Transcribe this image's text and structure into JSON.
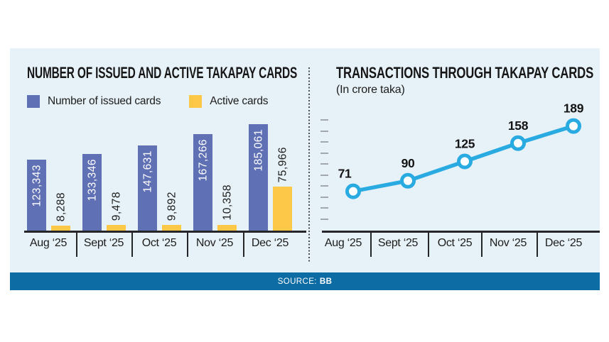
{
  "source": {
    "label": "SOURCE:",
    "value": "BB"
  },
  "colors": {
    "panel_background": "#e7f1f8",
    "issued_bar": "#6070b5",
    "active_bar": "#fdc748",
    "line": "#29abe2",
    "marker_fill": "#ffffff",
    "axis": "#26262a",
    "source_band": "#0c6ca3",
    "ytick": "#a2a8ae"
  },
  "chart_data": [
    {
      "type": "bar",
      "title": "NUMBER OF ISSUED AND ACTIVE TAKAPAY CARDS",
      "categories": [
        "Aug ‘25",
        "Sept ‘25",
        "Oct ‘25",
        "Nov ‘25",
        "Dec ‘25"
      ],
      "series": [
        {
          "name": "Number of issued cards",
          "color": "#6070b5",
          "values": [
            123343,
            133346,
            147631,
            167266,
            185061
          ],
          "labels": [
            "123,343",
            "133,346",
            "147,631",
            "167,266",
            "185,061"
          ]
        },
        {
          "name": "Active cards",
          "color": "#fdc748",
          "values": [
            8288,
            9478,
            9892,
            10358,
            75966
          ],
          "labels": [
            "8,288",
            "9,478",
            "9,892",
            "10,358",
            "75,966"
          ]
        }
      ],
      "ylim": [
        0,
        190000
      ],
      "grid": false,
      "legend_position": "top",
      "value_labels": "rotated-vertical"
    },
    {
      "type": "line",
      "title": "TRANSACTIONS THROUGH TAKAPAY CARDS",
      "subtitle": "(In crore taka)",
      "categories": [
        "Aug ‘25",
        "Sept ‘25",
        "Oct ‘25",
        "Nov ‘25",
        "Dec ‘25"
      ],
      "values": [
        71,
        90,
        125,
        158,
        189
      ],
      "labels": [
        "71",
        "90",
        "125",
        "158",
        "189"
      ],
      "line_color": "#29abe2",
      "marker": "circle-open",
      "ylim": [
        0,
        205
      ],
      "grid": false,
      "yaxis": "unlabeled-ticks"
    }
  ]
}
